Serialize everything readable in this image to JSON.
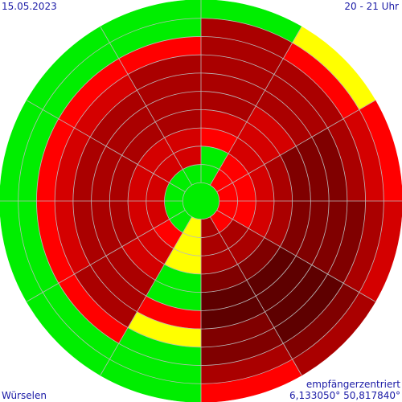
{
  "header": {
    "date": "15.05.2023",
    "time_range": "20 - 21 Uhr"
  },
  "footer": {
    "location": "Würselen",
    "mode": "empfängerzentriert",
    "coordinates": "6,133050° 50,817840°"
  },
  "colors": {
    "level_0": "#00ee00",
    "level_1": "#ffff00",
    "level_2": "#ff0000",
    "level_3": "#d40000",
    "level_4": "#aa0000",
    "level_5": "#800000",
    "level_6": "#5e0000",
    "grid": "#bbbbbb"
  },
  "chart_data": {
    "type": "polar-sector",
    "center_level": 0,
    "rings": 10,
    "sector_order": "clockwise from north, 30 degrees each",
    "sectors": [
      [
        0,
        0,
        2,
        3,
        4,
        4,
        4,
        4,
        4,
        0
      ],
      [
        2,
        2,
        3,
        3,
        3,
        4,
        4,
        4,
        2,
        1
      ],
      [
        2,
        2,
        3,
        4,
        5,
        5,
        5,
        4,
        3,
        2
      ],
      [
        2,
        2,
        3,
        4,
        5,
        5,
        5,
        5,
        4,
        3
      ],
      [
        2,
        4,
        4,
        5,
        6,
        6,
        6,
        6,
        5,
        4
      ],
      [
        4,
        4,
        4,
        5,
        6,
        6,
        5,
        5,
        4,
        2
      ],
      [
        1,
        1,
        1,
        0,
        0,
        2,
        1,
        0,
        0,
        0
      ],
      [
        0,
        2,
        3,
        3,
        4,
        4,
        4,
        2,
        0,
        0
      ],
      [
        0,
        3,
        3,
        4,
        4,
        4,
        3,
        2,
        0,
        0
      ],
      [
        0,
        3,
        3,
        4,
        4,
        4,
        3,
        2,
        0,
        0
      ],
      [
        0,
        3,
        3,
        4,
        4,
        4,
        3,
        2,
        0,
        0
      ],
      [
        0,
        3,
        3,
        4,
        4,
        4,
        4,
        2,
        0,
        0
      ]
    ]
  }
}
